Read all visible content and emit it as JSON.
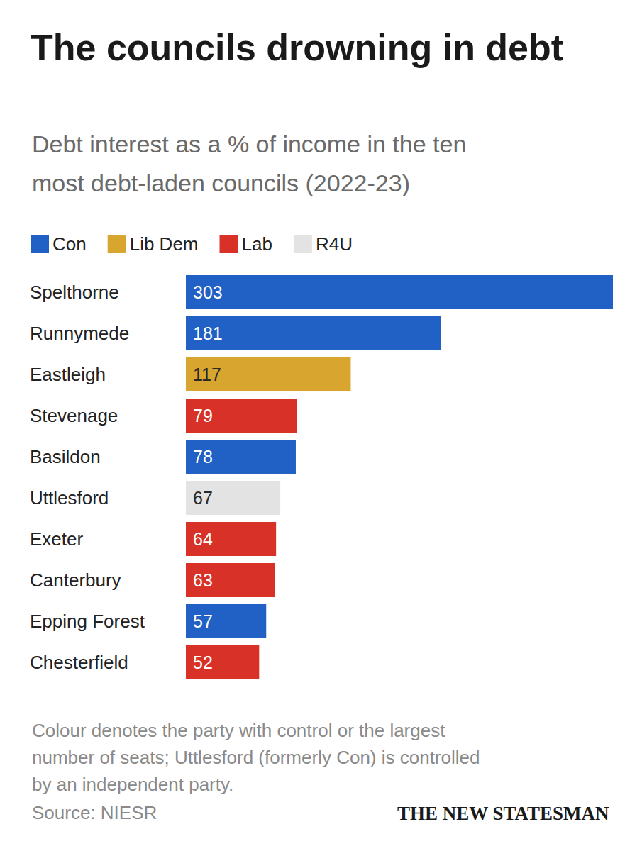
{
  "chart_data": {
    "type": "bar",
    "orientation": "horizontal",
    "title": "The councils drowning in debt",
    "subtitle": "Debt interest as a % of income in the ten most debt-laden councils (2022-23)",
    "categories": [
      "Spelthorne",
      "Runnymede",
      "Eastleigh",
      "Stevenage",
      "Basildon",
      "Uttlesford",
      "Exeter",
      "Canterbury",
      "Epping Forest",
      "Chesterfield"
    ],
    "series": [
      {
        "name": "Con",
        "color": "#2160c4",
        "values": [
          303,
          181,
          null,
          null,
          78,
          null,
          null,
          null,
          57,
          null
        ]
      },
      {
        "name": "Lib Dem",
        "color": "#d8a52e",
        "values": [
          null,
          null,
          117,
          null,
          null,
          null,
          null,
          null,
          null,
          null
        ]
      },
      {
        "name": "Lab",
        "color": "#d83128",
        "values": [
          null,
          null,
          null,
          79,
          null,
          null,
          64,
          63,
          null,
          52
        ]
      },
      {
        "name": "R4U",
        "color": "#e3e3e3",
        "values": [
          null,
          null,
          null,
          null,
          null,
          67,
          null,
          null,
          null,
          null
        ]
      }
    ],
    "stacked": true,
    "xlim": [
      0,
      303
    ],
    "tick_labels": "y",
    "grid": false,
    "legend": "top-left",
    "data_labels": true,
    "note": "Colour denotes the party with control or the largest number of seats; Uttlesford (formerly Con) is controlled by an independent party.",
    "source": "Source: NIESR",
    "logo": "THE NEW STATESMAN"
  }
}
